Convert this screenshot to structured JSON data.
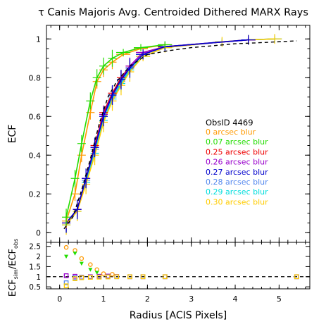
{
  "chart_data": [
    {
      "type": "line",
      "panel": "main",
      "title": "τ Canis Majoris Avg. Centroided Dithered MARX Rays",
      "xlabel": "",
      "ylabel": "ECF",
      "xlim": [
        -0.3,
        5.7
      ],
      "ylim": [
        -0.05,
        1.07
      ],
      "xticks": [
        0,
        1,
        2,
        3,
        4,
        5
      ],
      "yticks": [
        0,
        0.2,
        0.4,
        0.6,
        0.8,
        1
      ],
      "ytick_labels": [
        "0",
        "0.2",
        "0.4",
        "0.6",
        "0.8",
        "1"
      ],
      "grid": false,
      "legend": {
        "placement": "center-right",
        "title": "ObsID 4469",
        "entries": [
          {
            "label": "0 arcsec blur",
            "color": "#ff9900"
          },
          {
            "label": "0.07 arcsec blur",
            "color": "#22dd00"
          },
          {
            "label": "0.25 arcsec blur",
            "color": "#ee0000"
          },
          {
            "label": "0.26 arcsec blur",
            "color": "#9900cc"
          },
          {
            "label": "0.27 arcsec blur",
            "color": "#0000cc"
          },
          {
            "label": "0.28 arcsec blur",
            "color": "#5588ee"
          },
          {
            "label": "0.29 arcsec blur",
            "color": "#00dddd"
          },
          {
            "label": "0.30 arcsec blur",
            "color": "#ffcc00"
          }
        ]
      },
      "observed": {
        "style": "dashed",
        "color": "#000000",
        "x": [
          0.1,
          0.3,
          0.5,
          0.7,
          0.9,
          1.1,
          1.3,
          1.6,
          2.0,
          2.5,
          3.0,
          3.5,
          4.0,
          4.5,
          5.4
        ],
        "y": [
          0.02,
          0.08,
          0.22,
          0.38,
          0.56,
          0.7,
          0.78,
          0.86,
          0.92,
          0.94,
          0.955,
          0.965,
          0.975,
          0.98,
          0.99
        ]
      },
      "series": [
        {
          "color": "#5588ee",
          "x": [
            0.15,
            0.4,
            0.6,
            0.8,
            1.0,
            1.2,
            1.4,
            1.6,
            1.9,
            2.4,
            3.7,
            4.3,
            4.9
          ],
          "y": [
            0.04,
            0.12,
            0.27,
            0.43,
            0.6,
            0.7,
            0.78,
            0.85,
            0.92,
            0.96,
            0.985,
            0.995,
            1.0
          ]
        },
        {
          "color": "#00dddd",
          "x": [
            0.15,
            0.4,
            0.6,
            0.8,
            1.0,
            1.2,
            1.4,
            1.6,
            1.9,
            2.4,
            3.7,
            4.3,
            4.9
          ],
          "y": [
            0.04,
            0.11,
            0.26,
            0.41,
            0.58,
            0.69,
            0.77,
            0.84,
            0.91,
            0.955,
            0.985,
            0.995,
            1.0
          ]
        },
        {
          "color": "#ffcc00",
          "x": [
            0.15,
            0.4,
            0.6,
            0.8,
            1.0,
            1.2,
            1.4,
            1.6,
            1.9,
            2.4,
            3.7,
            4.3,
            4.9
          ],
          "y": [
            0.04,
            0.11,
            0.25,
            0.4,
            0.57,
            0.68,
            0.76,
            0.83,
            0.91,
            0.955,
            0.985,
            0.995,
            1.0
          ]
        },
        {
          "color": "#ee0000",
          "x": [
            0.15,
            0.4,
            0.6,
            0.8,
            1.0,
            1.2,
            1.4,
            1.6,
            1.9,
            2.4,
            4.3
          ],
          "y": [
            0.05,
            0.12,
            0.28,
            0.45,
            0.62,
            0.72,
            0.8,
            0.86,
            0.93,
            0.96,
            0.995
          ]
        },
        {
          "color": "#9900cc",
          "x": [
            0.15,
            0.4,
            0.6,
            0.8,
            1.0,
            1.2,
            1.4,
            1.6,
            1.9,
            2.4,
            4.3
          ],
          "y": [
            0.05,
            0.12,
            0.28,
            0.44,
            0.61,
            0.71,
            0.79,
            0.86,
            0.93,
            0.96,
            0.995
          ]
        },
        {
          "color": "#0000cc",
          "x": [
            0.15,
            0.4,
            0.6,
            0.8,
            1.0,
            1.2,
            1.4,
            1.6,
            1.9,
            2.4,
            4.3
          ],
          "y": [
            0.05,
            0.12,
            0.28,
            0.44,
            0.6,
            0.71,
            0.79,
            0.85,
            0.92,
            0.96,
            0.995
          ]
        },
        {
          "color": "#ff9900",
          "x": [
            0.15,
            0.35,
            0.5,
            0.7,
            0.85,
            1.0,
            1.2,
            1.45,
            1.85,
            2.4
          ],
          "y": [
            0.06,
            0.2,
            0.4,
            0.62,
            0.78,
            0.84,
            0.88,
            0.92,
            0.95,
            0.97
          ]
        },
        {
          "color": "#22dd00",
          "x": [
            0.15,
            0.35,
            0.5,
            0.7,
            0.85,
            1.0,
            1.2,
            1.45,
            1.85,
            2.4
          ],
          "y": [
            0.08,
            0.28,
            0.46,
            0.68,
            0.8,
            0.86,
            0.9,
            0.93,
            0.955,
            0.97
          ]
        }
      ]
    },
    {
      "type": "scatter",
      "panel": "ratio",
      "xlabel": "Radius [ACIS Pixels]",
      "ylabel": "ECF",
      "ylabel_sub1": "sim",
      "ylabel_mid": "/ECF",
      "ylabel_sub2": "obs",
      "xlim": [
        -0.3,
        5.7
      ],
      "ylim": [
        0.4,
        2.7
      ],
      "xticks": [
        0,
        1,
        2,
        3,
        4,
        5
      ],
      "yticks": [
        0.5,
        1,
        1.5,
        2,
        2.5
      ],
      "ytick_labels": [
        "0.5",
        "1",
        "1.5",
        "2",
        "2.5"
      ],
      "reference_line": {
        "y": 1,
        "style": "dashed"
      },
      "series": [
        {
          "color": "#ff9900",
          "marker": "circle",
          "x": [
            0.15,
            0.35,
            0.5,
            0.7,
            0.85,
            1.0,
            1.2
          ],
          "y": [
            2.45,
            2.3,
            1.9,
            1.6,
            1.35,
            1.15,
            1.12
          ]
        },
        {
          "color": "#22dd00",
          "marker": "triangle-down",
          "x": [
            0.15,
            0.35,
            0.5,
            0.7,
            0.85
          ],
          "y": [
            2.0,
            2.15,
            1.65,
            1.35,
            1.2
          ]
        },
        {
          "color": "#9900cc",
          "marker": "square",
          "x": [
            0.15,
            0.35,
            0.5,
            0.7,
            0.9,
            1.1,
            1.3,
            1.6,
            1.9,
            2.4,
            5.4
          ],
          "y": [
            1.05,
            1.02,
            0.98,
            1.0,
            1.02,
            1.03,
            1.01,
            1.0,
            1.0,
            1.0,
            1.0
          ]
        },
        {
          "color": "#5588ee",
          "marker": "square",
          "x": [
            0.15,
            0.35,
            0.5,
            0.7,
            0.9,
            1.1,
            1.3,
            1.6,
            1.9,
            2.4,
            5.4
          ],
          "y": [
            0.7,
            0.95,
            0.97,
            0.98,
            0.99,
            1.0,
            1.0,
            1.0,
            1.0,
            1.0,
            1.0
          ]
        },
        {
          "color": "#ffcc00",
          "marker": "square",
          "x": [
            0.15,
            0.35,
            0.5,
            0.7,
            0.9,
            1.1,
            1.3,
            1.6,
            1.9,
            2.4,
            5.4
          ],
          "y": [
            0.55,
            0.9,
            0.95,
            0.97,
            0.98,
            0.99,
            1.0,
            1.0,
            1.0,
            1.0,
            1.0
          ]
        }
      ]
    }
  ]
}
